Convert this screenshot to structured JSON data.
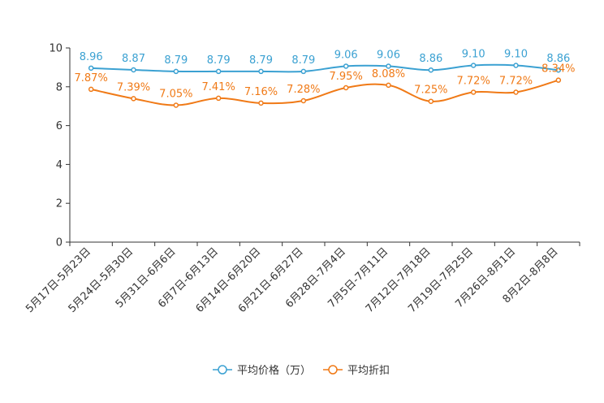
{
  "chart_data": {
    "type": "line",
    "title": "",
    "xlabel": "",
    "ylabel": "",
    "ylim": [
      0,
      10
    ],
    "yticks": [
      0,
      2,
      4,
      6,
      8,
      10
    ],
    "grid": false,
    "legend_position": "bottom-center",
    "categories": [
      "5月17日-5月23日",
      "5月24日-5月30日",
      "5月31日-6月6日",
      "6月7日-6月13日",
      "6月14日-6月20日",
      "6月21日-6月27日",
      "6月28日-7月4日",
      "7月5日-7月11日",
      "7月12日-7月18日",
      "7月19日-7月25日",
      "7月26日-8月1日",
      "8月2日-8月8日"
    ],
    "series": [
      {
        "name": "平均价格（万）",
        "color": "#3ba1d2",
        "values": [
          8.96,
          8.87,
          8.79,
          8.79,
          8.79,
          8.79,
          9.06,
          9.06,
          8.86,
          9.1,
          9.1,
          8.86
        ],
        "labels": [
          "8.96",
          "8.87",
          "8.79",
          "8.79",
          "8.79",
          "8.79",
          "9.06",
          "9.06",
          "8.86",
          "9.10",
          "9.10",
          "8.86"
        ]
      },
      {
        "name": "平均折扣",
        "color": "#f07a17",
        "values": [
          7.87,
          7.39,
          7.05,
          7.41,
          7.16,
          7.28,
          7.95,
          8.08,
          7.25,
          7.72,
          7.72,
          8.34
        ],
        "labels": [
          "7.87%",
          "7.39%",
          "7.05%",
          "7.41%",
          "7.16%",
          "7.28%",
          "7.95%",
          "8.08%",
          "7.25%",
          "7.72%",
          "7.72%",
          "8.34%"
        ]
      }
    ]
  }
}
